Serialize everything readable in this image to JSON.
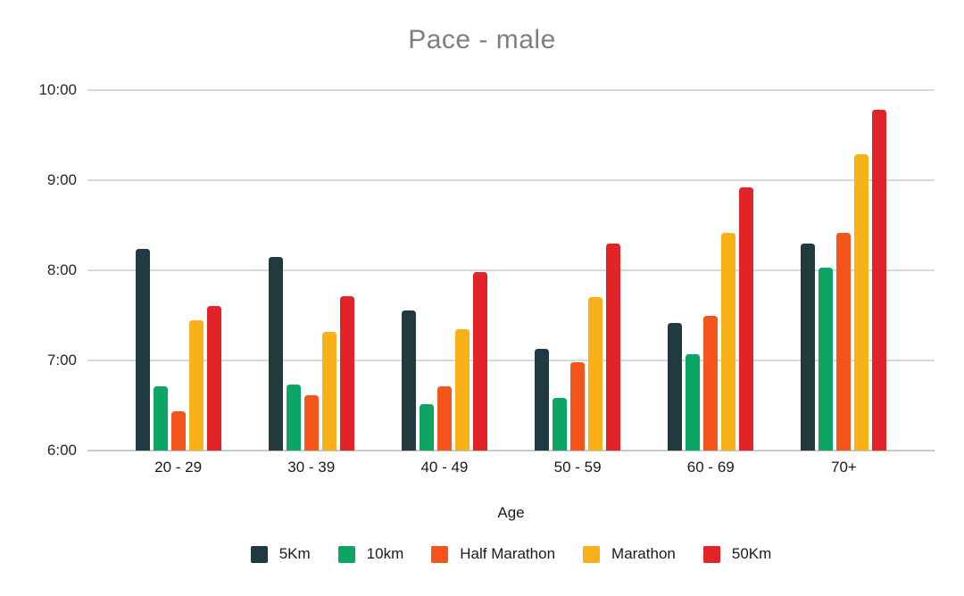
{
  "title": "Pace - male",
  "styles": {
    "title_color": "#7f7f7f",
    "grid_color": "#d9d9d9",
    "axis_line_color": "#c9c9c9",
    "tick_text_color": "#262626",
    "label_text_color": "#1a1a1a",
    "background": "#ffffff"
  },
  "chart_data": {
    "type": "bar",
    "title": "Pace - male",
    "xlabel": "Age",
    "ylabel": "",
    "grid": true,
    "legend_position": "bottom",
    "ylim": [
      "6:00",
      "10:00"
    ],
    "y_ticks_top_to_bottom": [
      "10:00",
      "9:00",
      "8:00",
      "7:00",
      "6:00"
    ],
    "categories": [
      "20 - 29",
      "30 - 39",
      "40 - 49",
      "50 - 59",
      "60 - 69",
      "70+"
    ],
    "series": [
      {
        "name": "5Km",
        "color": "#213a40",
        "values": [
          "8:14",
          "8:09",
          "7:33",
          "7:08",
          "7:25",
          "8:18"
        ]
      },
      {
        "name": "10km",
        "color": "#0da563",
        "values": [
          "6:43",
          "6:44",
          "6:31",
          "6:35",
          "7:04",
          "8:02"
        ]
      },
      {
        "name": "Half Marathon",
        "color": "#f4551c",
        "values": [
          "6:26",
          "6:37",
          "6:43",
          "6:59",
          "7:30",
          "8:25"
        ]
      },
      {
        "name": "Marathon",
        "color": "#f8b118",
        "values": [
          "7:27",
          "7:19",
          "7:21",
          "7:42",
          "8:25",
          "9:17"
        ]
      },
      {
        "name": "50Km",
        "color": "#e22428",
        "values": [
          "7:36",
          "7:43",
          "7:59",
          "8:18",
          "8:55",
          "9:47"
        ]
      }
    ]
  }
}
